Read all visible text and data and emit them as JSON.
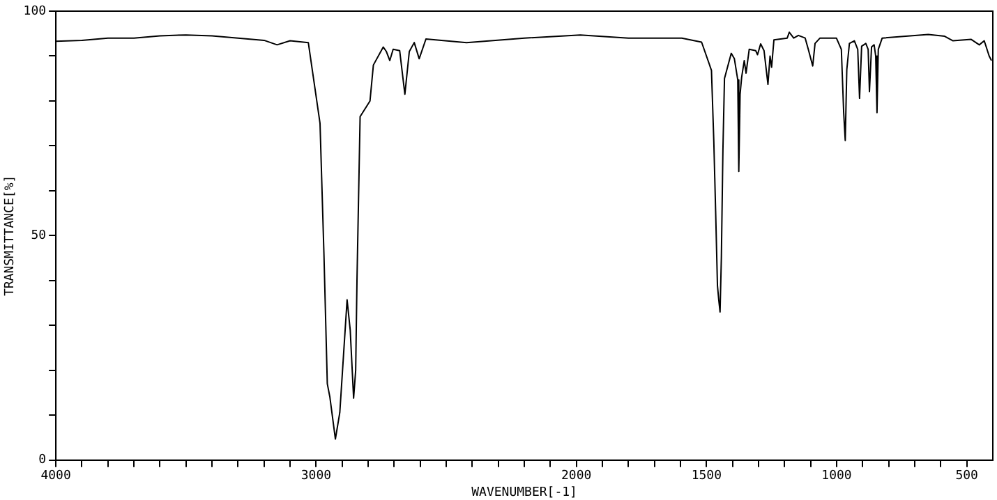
{
  "chart_data": {
    "type": "line",
    "xlabel": "WAVENUMBER[-1]",
    "ylabel": "TRANSMITTANCE[%]",
    "xlim": [
      4000,
      400
    ],
    "ylim": [
      0,
      100
    ],
    "xticks": [
      4000,
      {
        "value": 3900,
        "label": null
      },
      {
        "value": 3800,
        "label": null
      },
      {
        "value": 3700,
        "label": null
      },
      {
        "value": 3600,
        "label": null
      },
      {
        "value": 3500,
        "label": null
      },
      {
        "value": 3400,
        "label": null
      },
      {
        "value": 3300,
        "label": null
      },
      {
        "value": 3200,
        "label": null
      },
      {
        "value": 3100,
        "label": null
      },
      3000,
      {
        "value": 2900,
        "label": null
      },
      {
        "value": 2800,
        "label": null
      },
      {
        "value": 2700,
        "label": null
      },
      {
        "value": 2600,
        "label": null
      },
      {
        "value": 2500,
        "label": null
      },
      {
        "value": 2400,
        "label": null
      },
      {
        "value": 2300,
        "label": null
      },
      {
        "value": 2200,
        "label": null
      },
      {
        "value": 2100,
        "label": null
      },
      2000,
      {
        "value": 1900,
        "label": null
      },
      {
        "value": 1800,
        "label": null
      },
      {
        "value": 1700,
        "label": null
      },
      {
        "value": 1600,
        "label": null
      },
      1500,
      {
        "value": 1400,
        "label": null
      },
      {
        "value": 1300,
        "label": null
      },
      {
        "value": 1200,
        "label": null
      },
      {
        "value": 1100,
        "label": null
      },
      1000,
      {
        "value": 900,
        "label": null
      },
      {
        "value": 800,
        "label": null
      },
      {
        "value": 700,
        "label": null
      },
      {
        "value": 600,
        "label": null
      },
      500
    ],
    "yticks": [
      0,
      {
        "value": 10,
        "label": null
      },
      {
        "value": 20,
        "label": null
      },
      {
        "value": 30,
        "label": null
      },
      {
        "value": 40,
        "label": null
      },
      50,
      {
        "value": 60,
        "label": null
      },
      {
        "value": 70,
        "label": null
      },
      {
        "value": 80,
        "label": null
      },
      {
        "value": 90,
        "label": null
      },
      100
    ],
    "grid": false,
    "legend": false,
    "marker": "none",
    "line_style": "solid",
    "series": [
      {
        "color": "#000000",
        "x": [
          4000,
          3900,
          3800,
          3700,
          3600,
          3500,
          3400,
          3300,
          3200,
          3150,
          3100,
          3030,
          2985,
          2970,
          2957,
          2947,
          2926,
          2909,
          2881,
          2869,
          2856,
          2848,
          2843,
          2831,
          2793,
          2780,
          2742,
          2730,
          2717,
          2704,
          2679,
          2659,
          2642,
          2623,
          2604,
          2578,
          2422,
          2200,
          1985,
          1800,
          1700,
          1595,
          1519,
          1481,
          1472,
          1465,
          1458,
          1453,
          1448,
          1443,
          1437,
          1431,
          1405,
          1393,
          1380,
          1376,
          1371,
          1365,
          1355,
          1348,
          1336,
          1311,
          1304,
          1292,
          1279,
          1264,
          1256,
          1250,
          1241,
          1190,
          1182,
          1165,
          1147,
          1121,
          1109,
          1092,
          1083,
          1064,
          1001,
          982,
          973,
          967,
          961,
          951,
          932,
          919,
          912,
          904,
          888,
          879,
          874,
          866,
          856,
          850,
          845,
          840,
          825,
          648,
          585,
          553,
          483,
          452,
          433,
          414,
          405
        ],
        "values": [
          93.3,
          93.5,
          94,
          94,
          94.5,
          94.7,
          94.5,
          94,
          93.5,
          92.5,
          93.4,
          93,
          75,
          46,
          17,
          14,
          4.7,
          10.6,
          35.7,
          29,
          13.8,
          20,
          40,
          76.5,
          80,
          88,
          92,
          91,
          89,
          91.5,
          91.2,
          81.5,
          91,
          93,
          89.4,
          93.8,
          93,
          94,
          94.7,
          94,
          94,
          94,
          93.1,
          86.8,
          71,
          55.5,
          38.9,
          35.7,
          33,
          45,
          69,
          85,
          90.6,
          89.4,
          84.7,
          64.3,
          81.5,
          85.3,
          89,
          86.2,
          91.5,
          91.2,
          90.3,
          92.7,
          91.2,
          83.7,
          90,
          87.5,
          93.6,
          94,
          95.3,
          94,
          94.6,
          94,
          91.5,
          87.8,
          92.8,
          94,
          94,
          91.5,
          77.4,
          71.2,
          87,
          92.8,
          93.4,
          91.5,
          80.6,
          92.2,
          92.8,
          91.5,
          82.1,
          92,
          92.5,
          90,
          77.4,
          91.5,
          94,
          94.8,
          94.4,
          93.4,
          93.7,
          92.5,
          93.4,
          90,
          89
        ]
      }
    ]
  }
}
